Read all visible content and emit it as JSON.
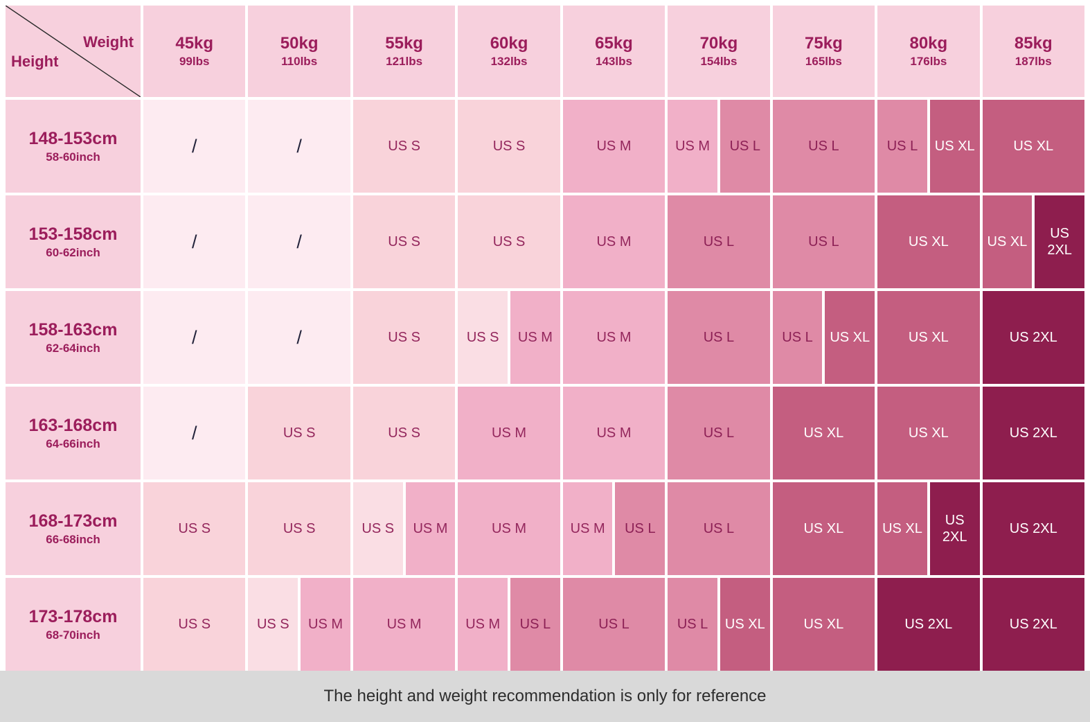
{
  "chart_data": {
    "type": "table",
    "x_axis_label": "Weight",
    "y_axis_label": "Height",
    "weights": [
      {
        "kg": "45kg",
        "lbs": "99lbs"
      },
      {
        "kg": "50kg",
        "lbs": "110lbs"
      },
      {
        "kg": "55kg",
        "lbs": "121lbs"
      },
      {
        "kg": "60kg",
        "lbs": "132lbs"
      },
      {
        "kg": "65kg",
        "lbs": "143lbs"
      },
      {
        "kg": "70kg",
        "lbs": "154lbs"
      },
      {
        "kg": "75kg",
        "lbs": "165lbs"
      },
      {
        "kg": "80kg",
        "lbs": "176lbs"
      },
      {
        "kg": "85kg",
        "lbs": "187lbs"
      }
    ],
    "heights": [
      {
        "cm": "148-153cm",
        "inch": "58-60inch"
      },
      {
        "cm": "153-158cm",
        "inch": "60-62inch"
      },
      {
        "cm": "158-163cm",
        "inch": "62-64inch"
      },
      {
        "cm": "163-168cm",
        "inch": "64-66inch"
      },
      {
        "cm": "168-173cm",
        "inch": "66-68inch"
      },
      {
        "cm": "173-178cm",
        "inch": "68-70inch"
      }
    ],
    "cells": [
      [
        "/",
        "/",
        "US S",
        "US S",
        "US M",
        [
          "US M",
          "US L"
        ],
        "US L",
        [
          "US L",
          "US XL"
        ],
        "US XL"
      ],
      [
        "/",
        "/",
        "US S",
        "US S",
        "US M",
        "US L",
        "US L",
        "US XL",
        [
          "US XL",
          "US 2XL"
        ]
      ],
      [
        "/",
        "/",
        "US S",
        [
          {
            "v": "US S",
            "light": true
          },
          "US M"
        ],
        "US M",
        "US L",
        [
          "US L",
          "US XL"
        ],
        "US XL",
        "US 2XL"
      ],
      [
        "/",
        "US S",
        "US S",
        "US M",
        "US M",
        "US L",
        "US XL",
        "US XL",
        "US 2XL"
      ],
      [
        "US S",
        "US S",
        [
          {
            "v": "US S",
            "light": true
          },
          "US M"
        ],
        "US M",
        [
          "US M",
          "US L"
        ],
        "US L",
        "US XL",
        [
          "US XL",
          "US 2XL"
        ],
        "US 2XL"
      ],
      [
        "US S",
        [
          {
            "v": "US S",
            "light": true
          },
          "US M"
        ],
        "US M",
        [
          "US M",
          "US L"
        ],
        "US L",
        [
          "US L",
          "US XL"
        ],
        "US XL",
        "US 2XL",
        "US 2XL"
      ]
    ]
  },
  "size_styles": {
    "/": {
      "bg": "#fdebf1",
      "fg": "#23233b"
    },
    "US S": {
      "bg": "#f9d3da",
      "fg": "#93265c"
    },
    "US M": {
      "bg": "#f1b0c8",
      "fg": "#93265c"
    },
    "US L": {
      "bg": "#df8aa6",
      "fg": "#8c2055"
    },
    "US XL": {
      "bg": "#c45e80",
      "fg": "#ffffff"
    },
    "US 2XL": {
      "bg": "#8e1e4e",
      "fg": "#ffffff"
    },
    "s_light_bg": "#fadee4",
    "header_bg": "#f7d0dd",
    "header_fg": "#9b1d5b",
    "footer_bg": "#d9d9d9"
  },
  "footer": {
    "note": "The height and weight recommendation is only for reference"
  }
}
